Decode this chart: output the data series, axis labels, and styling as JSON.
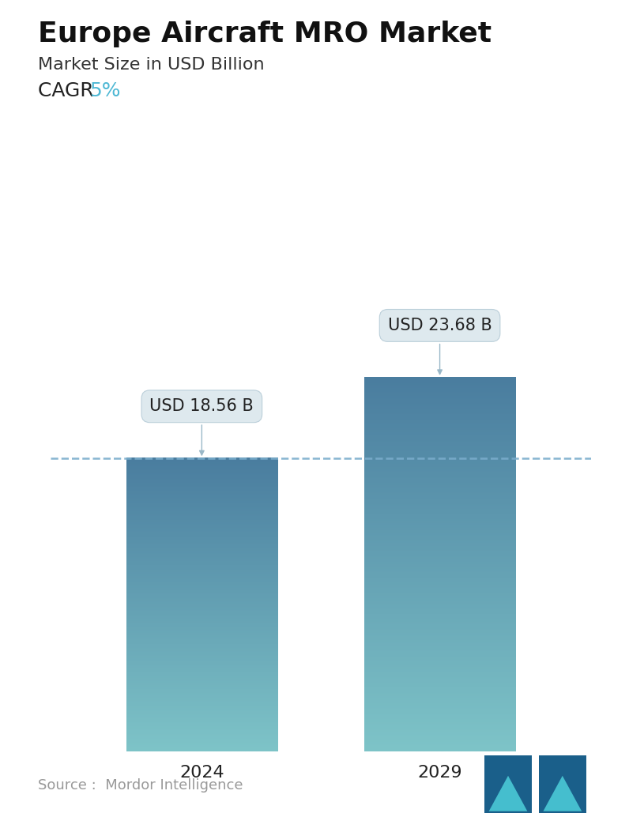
{
  "title": "Europe Aircraft MRO Market",
  "subtitle": "Market Size in USD Billion",
  "cagr_label": "CAGR",
  "cagr_value": "5%",
  "cagr_color": "#4eb8d4",
  "categories": [
    "2024",
    "2029"
  ],
  "values": [
    18.56,
    23.68
  ],
  "bar_labels": [
    "USD 18.56 B",
    "USD 23.68 B"
  ],
  "bar_top_color": "#4a7d9f",
  "bar_bottom_color": "#7ec4c8",
  "dashed_line_color": "#7aadcc",
  "dashed_line_value": 18.56,
  "bg_color": "#ffffff",
  "source_text": "Source :  Mordor Intelligence",
  "source_color": "#999999",
  "title_fontsize": 26,
  "subtitle_fontsize": 16,
  "cagr_fontsize": 18,
  "label_fontsize": 15,
  "tick_fontsize": 16,
  "source_fontsize": 13,
  "ylim": [
    0,
    30
  ],
  "bar_width": 0.28
}
